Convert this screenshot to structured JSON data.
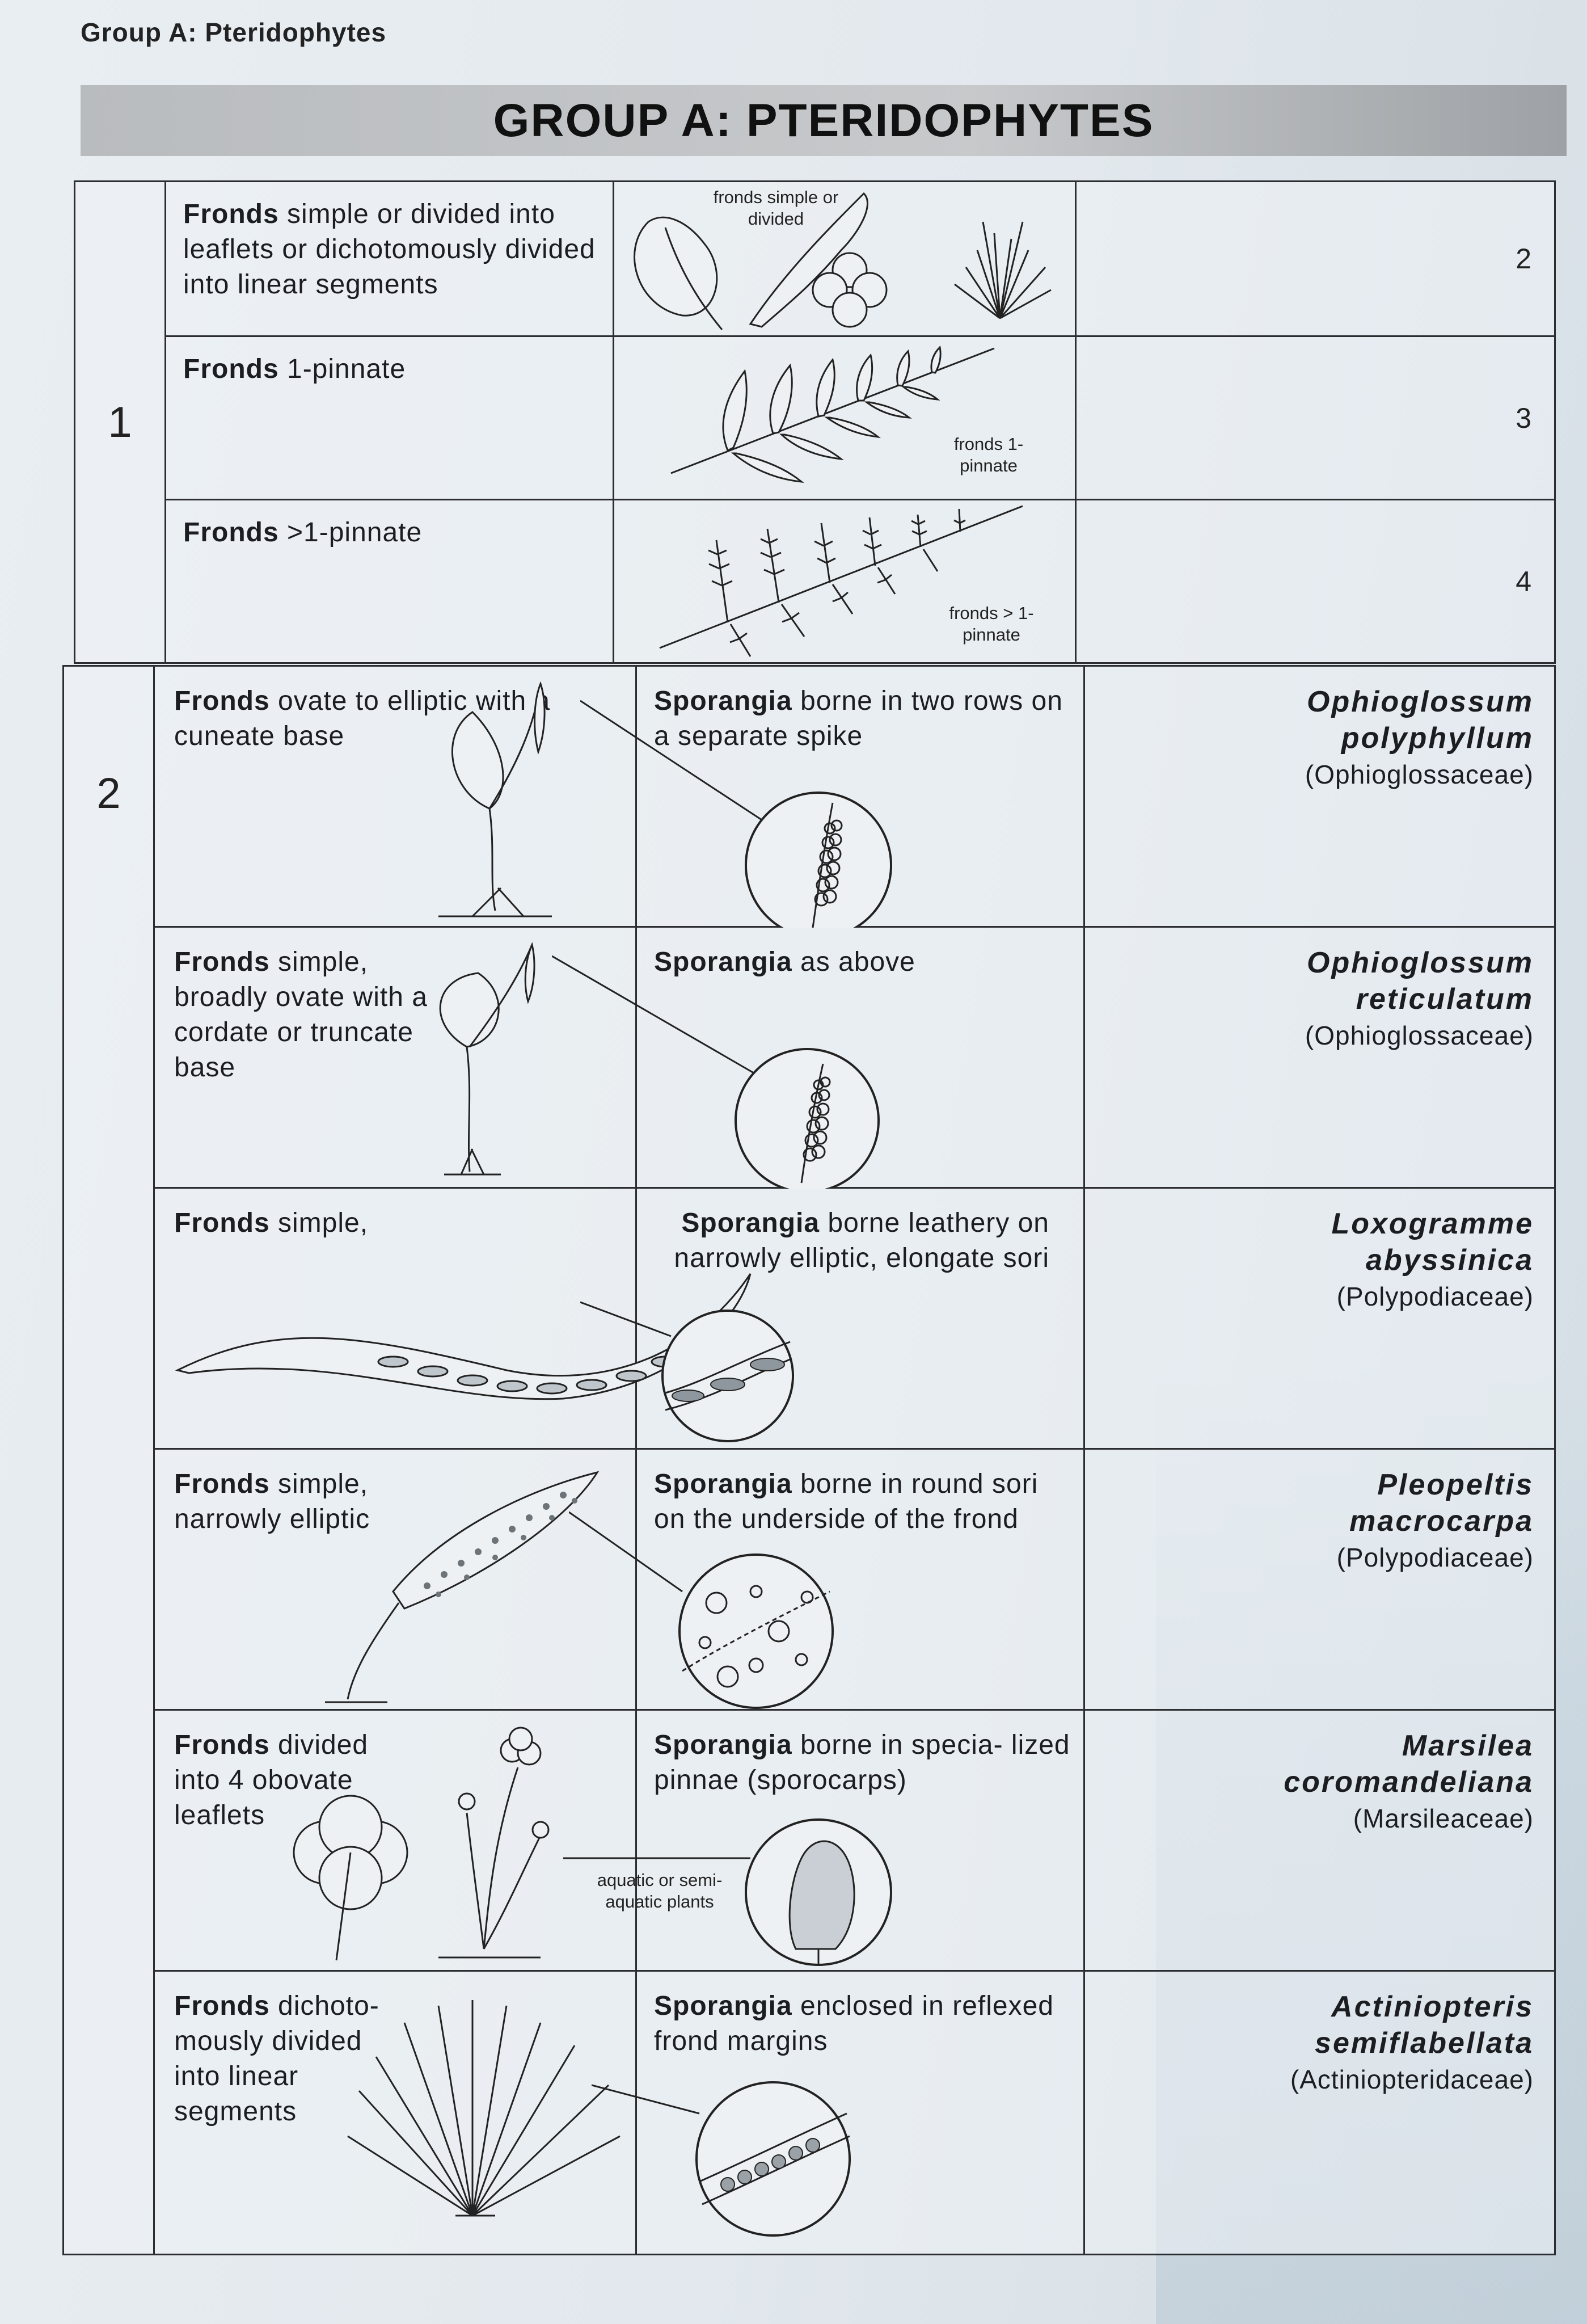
{
  "running_head": "Group A: Pteridophytes",
  "title": "GROUP A: PTERIDOPHYTES",
  "key1": {
    "number": "1",
    "rows": [
      {
        "bold": "Fronds",
        "text": " simple or divided into leaflets or dichotomously divided into linear segments",
        "fig_label": "fronds simple or divided",
        "lead": "2"
      },
      {
        "bold": "Fronds",
        "text": " 1-pinnate",
        "fig_label": "fronds 1-pinnate",
        "lead": "3"
      },
      {
        "bold": "Fronds",
        "text": " >1-pinnate",
        "fig_label": "fronds > 1-pinnate",
        "lead": "4"
      }
    ]
  },
  "key2": {
    "number": "2",
    "rows": [
      {
        "frond_bold": "Fronds",
        "frond_text": " ovate to elliptic with a cuneate base",
        "spor_bold": "Sporangia",
        "spor_text": " borne in two rows on a separate spike",
        "genus": "Ophioglossum",
        "species": "polyphyllum",
        "family": "(Ophioglossaceae)"
      },
      {
        "frond_bold": "Fronds",
        "frond_text": " simple, broadly ovate with a cordate or truncate base",
        "spor_bold": "Sporangia",
        "spor_text": " as above",
        "genus": "Ophioglossum",
        "species": "reticulatum",
        "family": "(Ophioglossaceae)"
      },
      {
        "frond_bold": "Fronds",
        "frond_text": " simple,",
        "spor_bold": "Sporangia",
        "spor_text": " borne leathery on narrowly elliptic, elongate sori",
        "genus": "Loxogramme",
        "species": "abyssinica",
        "family": "(Polypodiaceae)"
      },
      {
        "frond_bold": "Fronds",
        "frond_text": " simple, narrowly elliptic",
        "spor_bold": "Sporangia",
        "spor_text": " borne in round sori on the underside of the frond",
        "genus": "Pleopeltis",
        "species": "macrocarpa",
        "family": "(Polypodiaceae)"
      },
      {
        "frond_bold": "Fronds",
        "frond_text": " divided into 4 obovate leaflets",
        "spor_bold": "Sporangia",
        "spor_text": " borne in specia- lized pinnae (sporocarps)",
        "fig_label": "aquatic or semi-aquatic plants",
        "genus": "Marsilea",
        "species": "coromandeliana",
        "family": "(Marsileaceae)"
      },
      {
        "frond_bold": "Fronds",
        "frond_text": " dichoto- mously divided into linear segments",
        "spor_bold": "Sporangia",
        "spor_text": " enclosed in reflexed frond margins",
        "genus": "Actiniopteris",
        "species": "semiflabellata",
        "family": "(Actiniopteridaceae)"
      }
    ]
  },
  "colors": {
    "ink": "#1b1d21",
    "title_bar": "#c2c4c6",
    "paper": "#e4eaef"
  },
  "icons": [
    "simple-frond-drawing",
    "pinnate-frond-drawing",
    "bipinnate-frond-drawing",
    "sporangia-lens-drawing"
  ]
}
